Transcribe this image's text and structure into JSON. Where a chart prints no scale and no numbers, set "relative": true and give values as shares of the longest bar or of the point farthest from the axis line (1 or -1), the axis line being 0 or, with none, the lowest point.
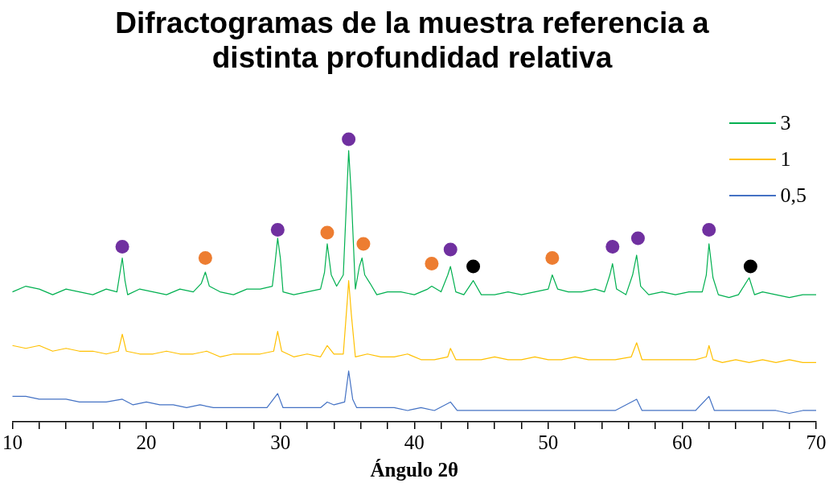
{
  "chart_data": {
    "type": "line",
    "title": "Difractogramas de la muestra referencia a distinta profundidad relativa",
    "xlabel": "Ángulo 2θ",
    "relative": true,
    "legend": "top right",
    "grid": false,
    "xlim": [
      10,
      70
    ],
    "xticks": [
      10,
      {
        "value": 12,
        "label": null
      },
      {
        "value": 14,
        "label": null
      },
      {
        "value": 16,
        "label": null
      },
      {
        "value": 18,
        "label": null
      },
      20,
      {
        "value": 22,
        "label": null
      },
      {
        "value": 24,
        "label": null
      },
      {
        "value": 26,
        "label": null
      },
      {
        "value": 28,
        "label": null
      },
      30,
      {
        "value": 32,
        "label": null
      },
      {
        "value": 34,
        "label": null
      },
      {
        "value": 36,
        "label": null
      },
      {
        "value": 38,
        "label": null
      },
      40,
      {
        "value": 42,
        "label": null
      },
      {
        "value": 44,
        "label": null
      },
      {
        "value": 46,
        "label": null
      },
      {
        "value": 48,
        "label": null
      },
      50,
      {
        "value": 52,
        "label": null
      },
      {
        "value": 54,
        "label": null
      },
      {
        "value": 56,
        "label": null
      },
      {
        "value": 58,
        "label": null
      },
      60,
      {
        "value": 62,
        "label": null
      },
      {
        "value": 64,
        "label": null
      },
      {
        "value": 66,
        "label": null
      },
      {
        "value": 68,
        "label": null
      },
      70
    ],
    "series": [
      {
        "name": "3",
        "color": "#00b050",
        "x": [
          10,
          11,
          12,
          13,
          14,
          15,
          16,
          17,
          17.8,
          18.0,
          18.2,
          18.4,
          18.6,
          19.5,
          20.5,
          21.5,
          22.5,
          23.5,
          24.1,
          24.4,
          24.7,
          25.5,
          26.5,
          27.5,
          28.5,
          29.4,
          29.6,
          29.8,
          30.0,
          30.2,
          31,
          32,
          33,
          33.3,
          33.5,
          33.8,
          34.2,
          34.7,
          35.0,
          35.1,
          35.3,
          35.6,
          35.9,
          36.1,
          36.3,
          36.7,
          37.2,
          38,
          39,
          40,
          41,
          41.3,
          42,
          42.5,
          42.7,
          43.1,
          43.7,
          44.4,
          45,
          46,
          47,
          48,
          49,
          50,
          50.3,
          50.7,
          51.5,
          52.5,
          53.5,
          54.2,
          54.6,
          54.8,
          55.1,
          55.8,
          56.3,
          56.6,
          56.9,
          57.5,
          58.5,
          59.5,
          60.5,
          61.5,
          61.8,
          62.0,
          62.3,
          62.7,
          63.5,
          64.2,
          65.0,
          65.4,
          66,
          67,
          68,
          69,
          70
        ],
        "values": [
          0.46,
          0.48,
          0.47,
          0.45,
          0.47,
          0.46,
          0.45,
          0.47,
          0.46,
          0.52,
          0.58,
          0.5,
          0.45,
          0.47,
          0.46,
          0.45,
          0.47,
          0.46,
          0.49,
          0.53,
          0.48,
          0.46,
          0.45,
          0.47,
          0.47,
          0.48,
          0.56,
          0.65,
          0.58,
          0.46,
          0.45,
          0.46,
          0.47,
          0.53,
          0.63,
          0.52,
          0.48,
          0.52,
          0.85,
          0.96,
          0.8,
          0.47,
          0.55,
          0.58,
          0.52,
          0.49,
          0.45,
          0.46,
          0.46,
          0.45,
          0.47,
          0.48,
          0.46,
          0.52,
          0.55,
          0.46,
          0.45,
          0.5,
          0.45,
          0.45,
          0.46,
          0.45,
          0.46,
          0.47,
          0.52,
          0.47,
          0.46,
          0.46,
          0.47,
          0.46,
          0.52,
          0.56,
          0.47,
          0.45,
          0.52,
          0.59,
          0.48,
          0.45,
          0.46,
          0.45,
          0.46,
          0.46,
          0.52,
          0.63,
          0.51,
          0.45,
          0.44,
          0.45,
          0.51,
          0.45,
          0.46,
          0.45,
          0.44,
          0.45,
          0.45
        ]
      },
      {
        "name": "1",
        "color": "#ffc000",
        "x": [
          10,
          11,
          12,
          13,
          14,
          15,
          16,
          17,
          17.9,
          18.2,
          18.5,
          19.5,
          20.5,
          21.5,
          22.5,
          23.5,
          24.5,
          25.5,
          26.5,
          27.5,
          28.5,
          29.5,
          29.8,
          30.1,
          31,
          32,
          33,
          33.5,
          34,
          34.7,
          35.0,
          35.1,
          35.3,
          35.6,
          36.5,
          37.5,
          38.5,
          39.5,
          40.5,
          41.5,
          42.5,
          42.7,
          43.1,
          44,
          45,
          46,
          47,
          48,
          49,
          50,
          51,
          52,
          53,
          54,
          55,
          56.2,
          56.6,
          57,
          58,
          59,
          60,
          61,
          61.8,
          62.0,
          62.3,
          63,
          64,
          65,
          66,
          67,
          68,
          69,
          70
        ],
        "values": [
          0.27,
          0.26,
          0.27,
          0.25,
          0.26,
          0.25,
          0.25,
          0.24,
          0.25,
          0.31,
          0.25,
          0.24,
          0.24,
          0.25,
          0.24,
          0.24,
          0.25,
          0.23,
          0.24,
          0.24,
          0.24,
          0.25,
          0.32,
          0.25,
          0.23,
          0.24,
          0.23,
          0.27,
          0.24,
          0.24,
          0.43,
          0.5,
          0.38,
          0.23,
          0.24,
          0.23,
          0.23,
          0.24,
          0.22,
          0.22,
          0.23,
          0.26,
          0.22,
          0.22,
          0.22,
          0.23,
          0.22,
          0.22,
          0.23,
          0.22,
          0.22,
          0.23,
          0.22,
          0.22,
          0.22,
          0.23,
          0.28,
          0.22,
          0.22,
          0.22,
          0.22,
          0.22,
          0.23,
          0.27,
          0.22,
          0.21,
          0.22,
          0.21,
          0.22,
          0.21,
          0.22,
          0.21,
          0.21
        ]
      },
      {
        "name": "0,5",
        "color": "#4472c4",
        "x": [
          10,
          11,
          12,
          13,
          14,
          15,
          16,
          17,
          18.2,
          19,
          20,
          21,
          22,
          23,
          24,
          25,
          26,
          27,
          28,
          29,
          29.8,
          30.2,
          31,
          32,
          33,
          33.5,
          34,
          34.8,
          35.1,
          35.4,
          35.7,
          36.5,
          37.5,
          38.5,
          39.5,
          40.5,
          41.5,
          42.7,
          43.2,
          44,
          45,
          46,
          47,
          48,
          49,
          50,
          51,
          52,
          53,
          54,
          55,
          56.6,
          57,
          58,
          59,
          60,
          61,
          62.0,
          62.4,
          63,
          64,
          65,
          66,
          67,
          68,
          69,
          70
        ],
        "values": [
          0.09,
          0.09,
          0.08,
          0.08,
          0.08,
          0.07,
          0.07,
          0.07,
          0.08,
          0.06,
          0.07,
          0.06,
          0.06,
          0.05,
          0.06,
          0.05,
          0.05,
          0.05,
          0.05,
          0.05,
          0.1,
          0.05,
          0.05,
          0.05,
          0.05,
          0.07,
          0.06,
          0.07,
          0.18,
          0.08,
          0.05,
          0.05,
          0.05,
          0.05,
          0.04,
          0.05,
          0.04,
          0.07,
          0.04,
          0.04,
          0.04,
          0.04,
          0.04,
          0.04,
          0.04,
          0.04,
          0.04,
          0.04,
          0.04,
          0.04,
          0.04,
          0.08,
          0.04,
          0.04,
          0.04,
          0.04,
          0.04,
          0.09,
          0.04,
          0.04,
          0.04,
          0.04,
          0.04,
          0.04,
          0.03,
          0.04,
          0.04
        ]
      },
      {
        "type": "scatter",
        "x": [
          18.2,
          24.4,
          29.8,
          33.5,
          35.1,
          36.2,
          41.3,
          42.7,
          44.4,
          50.3,
          54.8,
          56.7,
          62.0,
          65.1
        ],
        "values": [
          0.62,
          0.58,
          0.68,
          0.67,
          1,
          0.63,
          0.56,
          0.61,
          0.55,
          0.58,
          0.62,
          0.65,
          0.68,
          0.55
        ],
        "colors": [
          "#7030a0",
          "#ed7d31",
          "#7030a0",
          "#ed7d31",
          "#7030a0",
          "#ed7d31",
          "#ed7d31",
          "#7030a0",
          "#000000",
          "#ed7d31",
          "#7030a0",
          "#7030a0",
          "#7030a0",
          "#000000"
        ]
      }
    ]
  }
}
